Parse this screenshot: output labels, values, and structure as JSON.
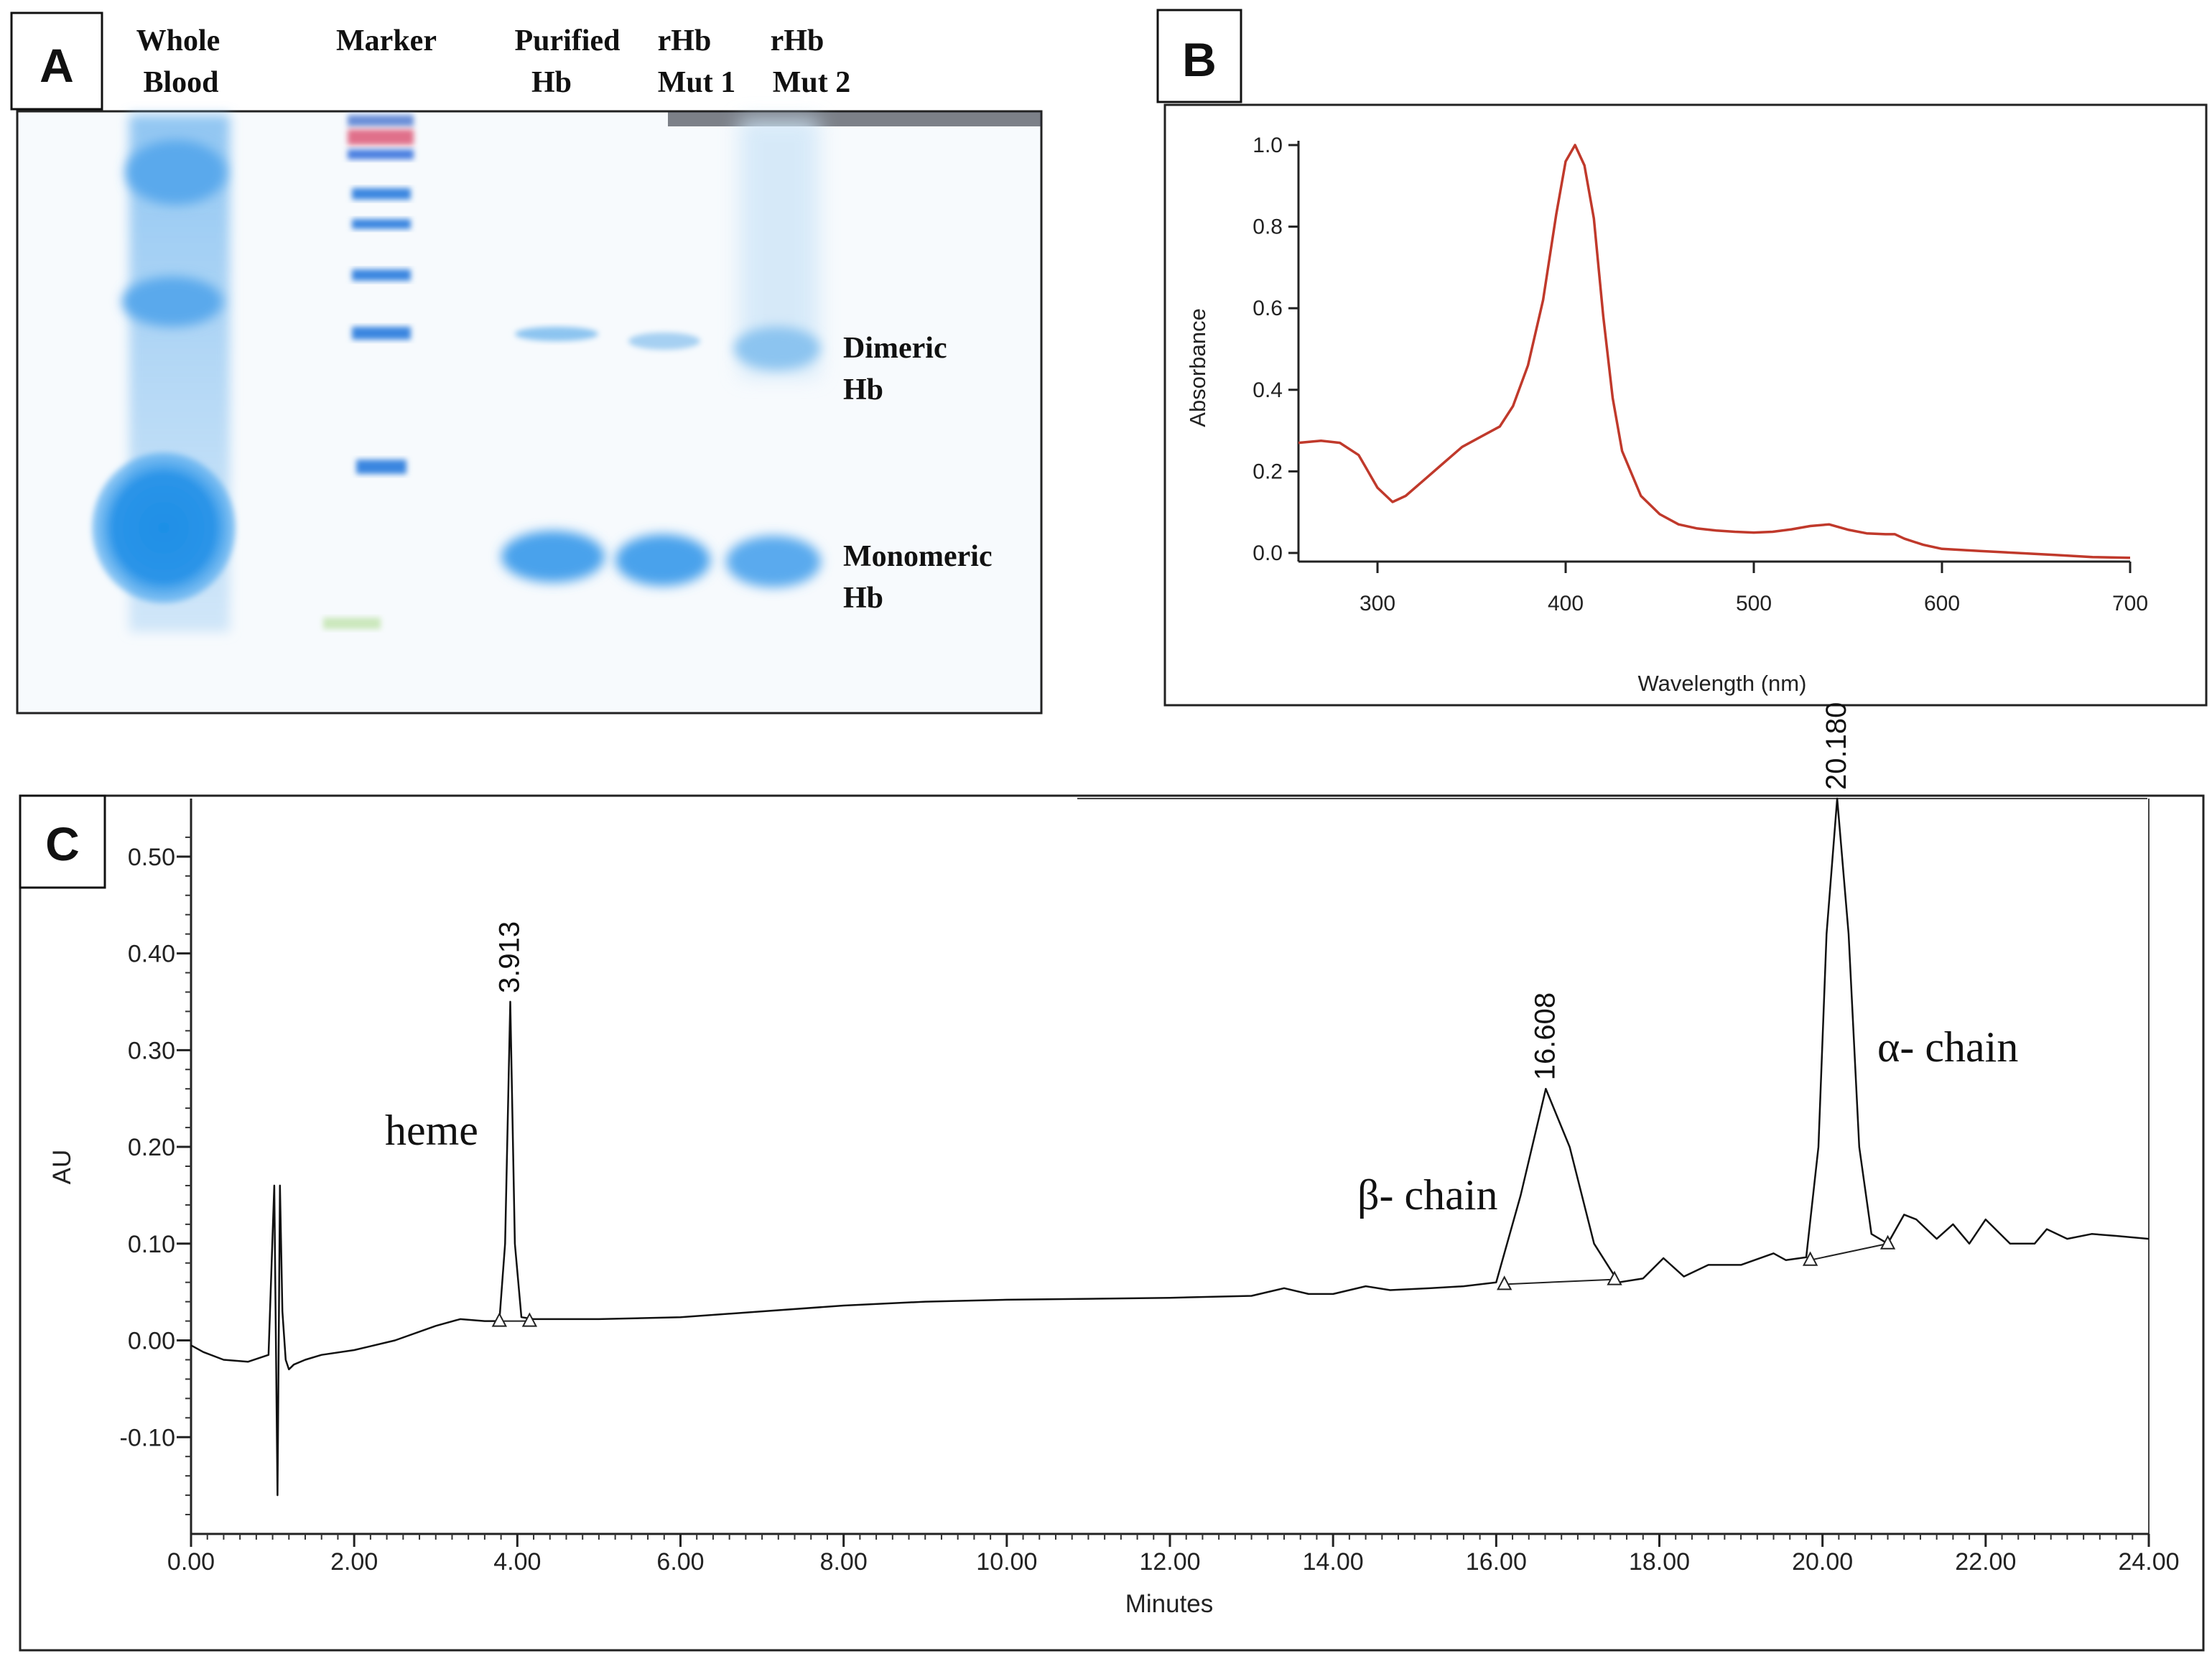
{
  "panel_a": {
    "label": "A",
    "lane_labels": [
      {
        "line1": "Whole",
        "line2": "Blood"
      },
      {
        "line1": "Marker",
        "line2": ""
      },
      {
        "line1": "Purified",
        "line2": "Hb"
      },
      {
        "line1": "rHb",
        "line2": "Mut 1"
      },
      {
        "line1": "rHb",
        "line2": "Mut 2"
      }
    ],
    "band_labels": [
      {
        "line1": "Dimeric",
        "line2": "Hb"
      },
      {
        "line1": "Monomeric",
        "line2": "Hb"
      }
    ]
  },
  "panel_b": {
    "label": "B",
    "line_color": "#c0392b"
  },
  "panel_c": {
    "label": "C",
    "peak_names": [
      "heme",
      "β- chain",
      "α- chain"
    ]
  },
  "chart_data": [
    {
      "type": "line",
      "panel": "B",
      "title": "",
      "xlabel": "Wavelength (nm)",
      "ylabel": "Absorbance",
      "xlim": [
        258,
        700
      ],
      "ylim": [
        0.0,
        1.0
      ],
      "xticks": [
        300,
        400,
        500,
        600,
        700
      ],
      "yticks": [
        "0.0",
        "0.2",
        "0.4",
        "0.6",
        "0.8",
        "1.0"
      ],
      "series": [
        {
          "name": "Absorbance spectrum",
          "x": [
            258,
            270,
            280,
            290,
            300,
            308,
            315,
            325,
            335,
            345,
            355,
            365,
            372,
            380,
            388,
            395,
            400,
            405,
            410,
            415,
            420,
            425,
            430,
            440,
            450,
            460,
            470,
            480,
            490,
            500,
            510,
            520,
            530,
            540,
            550,
            560,
            570,
            575,
            580,
            590,
            600,
            620,
            640,
            660,
            680,
            700
          ],
          "y": [
            0.27,
            0.275,
            0.27,
            0.24,
            0.16,
            0.125,
            0.14,
            0.18,
            0.22,
            0.26,
            0.285,
            0.31,
            0.36,
            0.46,
            0.62,
            0.83,
            0.96,
            1.0,
            0.95,
            0.82,
            0.58,
            0.38,
            0.25,
            0.14,
            0.095,
            0.07,
            0.06,
            0.055,
            0.052,
            0.05,
            0.052,
            0.058,
            0.066,
            0.07,
            0.057,
            0.048,
            0.046,
            0.046,
            0.035,
            0.02,
            0.01,
            0.005,
            0.0,
            -0.005,
            -0.01,
            -0.012
          ]
        }
      ]
    },
    {
      "type": "line",
      "panel": "C",
      "title": "",
      "xlabel": "Minutes",
      "ylabel": "AU",
      "xlim": [
        0.0,
        24.0
      ],
      "ylim": [
        -0.2,
        0.56
      ],
      "xticks": [
        "0.00",
        "2.00",
        "4.00",
        "6.00",
        "8.00",
        "10.00",
        "12.00",
        "14.00",
        "16.00",
        "18.00",
        "20.00",
        "22.00",
        "24.00"
      ],
      "yticks": [
        "-0.10",
        "0.00",
        "0.10",
        "0.20",
        "0.30",
        "0.40",
        "0.50"
      ],
      "peak_labels": [
        {
          "text": "3.913",
          "x": 3.913,
          "y": 0.35
        },
        {
          "text": "16.608",
          "x": 16.608,
          "y": 0.26
        },
        {
          "text": "20.180",
          "x": 20.18,
          "y": 0.56
        }
      ],
      "series": [
        {
          "name": "Chromatogram",
          "x": [
            0.0,
            0.15,
            0.4,
            0.7,
            0.95,
            1.02,
            1.06,
            1.09,
            1.12,
            1.16,
            1.2,
            1.26,
            1.4,
            1.6,
            2.0,
            2.5,
            3.0,
            3.3,
            3.6,
            3.78,
            3.85,
            3.913,
            3.97,
            4.05,
            4.2,
            5.0,
            6.0,
            7.0,
            8.0,
            9.0,
            10.0,
            11.0,
            12.0,
            13.0,
            13.4,
            13.7,
            14.0,
            14.4,
            14.7,
            15.2,
            15.6,
            16.0,
            16.3,
            16.608,
            16.9,
            17.2,
            17.5,
            17.8,
            18.05,
            18.3,
            18.6,
            19.0,
            19.4,
            19.55,
            19.8,
            19.95,
            20.05,
            20.18,
            20.32,
            20.45,
            20.6,
            20.8,
            21.0,
            21.15,
            21.4,
            21.6,
            21.8,
            22.0,
            22.3,
            22.6,
            22.75,
            23.0,
            23.3,
            23.6,
            24.0
          ],
          "y": [
            -0.005,
            -0.012,
            -0.02,
            -0.022,
            -0.015,
            0.16,
            -0.16,
            0.16,
            0.03,
            -0.02,
            -0.03,
            -0.025,
            -0.02,
            -0.015,
            -0.01,
            0.0,
            0.015,
            0.022,
            0.02,
            0.02,
            0.1,
            0.35,
            0.1,
            0.024,
            0.022,
            0.022,
            0.024,
            0.03,
            0.036,
            0.04,
            0.042,
            0.043,
            0.044,
            0.046,
            0.054,
            0.048,
            0.048,
            0.056,
            0.052,
            0.054,
            0.056,
            0.06,
            0.15,
            0.26,
            0.2,
            0.1,
            0.06,
            0.064,
            0.085,
            0.066,
            0.078,
            0.078,
            0.09,
            0.083,
            0.086,
            0.2,
            0.42,
            0.56,
            0.42,
            0.2,
            0.11,
            0.1,
            0.13,
            0.125,
            0.105,
            0.12,
            0.1,
            0.125,
            0.1,
            0.1,
            0.115,
            0.105,
            0.11,
            0.108,
            0.105
          ]
        }
      ]
    }
  ]
}
